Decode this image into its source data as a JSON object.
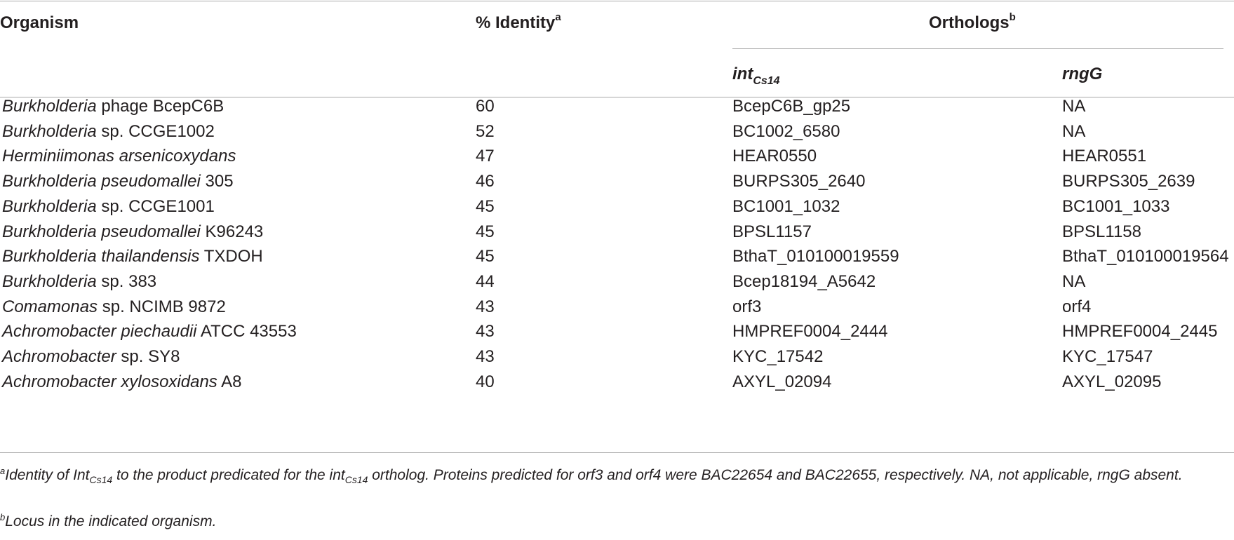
{
  "table": {
    "headers": {
      "organism": "Organism",
      "identity": "% Identity",
      "identity_note": "a",
      "orthologs": "Orthologs",
      "orthologs_note": "b",
      "int_base": "int",
      "int_sub": "Cs14",
      "rng": "rngG"
    },
    "rows": [
      {
        "genus": "Burkholderia",
        "rest": " phage BcepC6B",
        "identity": "60",
        "int": "BcepC6B_gp25",
        "rng": "NA"
      },
      {
        "genus": "Burkholderia",
        "rest": " sp. CCGE1002",
        "identity": "52",
        "int": "BC1002_6580",
        "rng": "NA"
      },
      {
        "genus": "Herminiimonas arsenicoxydans",
        "rest": "",
        "identity": "47",
        "int": "HEAR0550",
        "rng": "HEAR0551"
      },
      {
        "genus": "Burkholderia pseudomallei",
        "rest": " 305",
        "identity": "46",
        "int": "BURPS305_2640",
        "rng": "BURPS305_2639"
      },
      {
        "genus": "Burkholderia",
        "rest": " sp. CCGE1001",
        "identity": "45",
        "int": "BC1001_1032",
        "rng": "BC1001_1033"
      },
      {
        "genus": "Burkholderia pseudomallei",
        "rest": " K96243",
        "identity": "45",
        "int": "BPSL1157",
        "rng": "BPSL1158"
      },
      {
        "genus": "Burkholderia thailandensis",
        "rest": " TXDOH",
        "identity": "45",
        "int": "BthaT_010100019559",
        "rng": "BthaT_010100019564"
      },
      {
        "genus": "Burkholderia",
        "rest": " sp. 383",
        "identity": "44",
        "int": "Bcep18194_A5642",
        "rng": "NA"
      },
      {
        "genus": "Comamonas",
        "rest": " sp. NCIMB 9872",
        "identity": "43",
        "int": "orf3",
        "rng": "orf4"
      },
      {
        "genus": "Achromobacter piechaudii",
        "rest": " ATCC 43553",
        "identity": "43",
        "int": "HMPREF0004_2444",
        "rng": "HMPREF0004_2445"
      },
      {
        "genus": "Achromobacter",
        "rest": " sp. SY8",
        "identity": "43",
        "int": "KYC_17542",
        "rng": "KYC_17547"
      },
      {
        "genus": "Achromobacter xylosoxidans",
        "rest": " A8",
        "identity": "40",
        "int": "AXYL_02094",
        "rng": "AXYL_02095"
      }
    ]
  },
  "footnotes": {
    "a_mark": "a",
    "a_part1": "Identity of Int",
    "a_sub1": "Cs14",
    "a_part2": " to the product predicated for the int",
    "a_sub2": "Cs14",
    "a_part3": " ortholog. Proteins predicted for orf3 and orf4 were BAC22654 and BAC22655, respectively. NA, not applicable, rngG absent.",
    "b_mark": "b",
    "b_text": "Locus in the indicated organism."
  }
}
